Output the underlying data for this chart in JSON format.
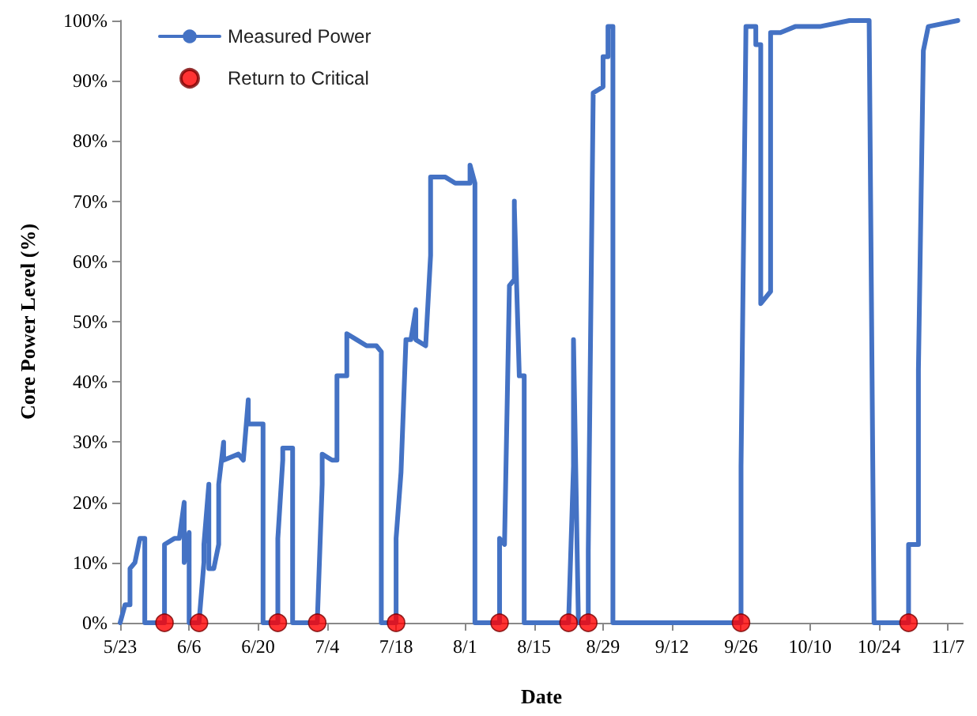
{
  "chart_data": {
    "type": "line",
    "xlabel": "Date",
    "ylabel": "Core Power Level (%)",
    "xlim": [
      "--05-23",
      "--11-10"
    ],
    "xticks": [
      {
        "value": "--05-23",
        "label": "5/23"
      },
      {
        "value": "--06-06",
        "label": "6/6"
      },
      {
        "value": "--06-20",
        "label": "6/20"
      },
      {
        "value": "--07-04",
        "label": "7/4"
      },
      {
        "value": "--07-18",
        "label": "7/18"
      },
      {
        "value": "--08-01",
        "label": "8/1"
      },
      {
        "value": "--08-15",
        "label": "8/15"
      },
      {
        "value": "--08-29",
        "label": "8/29"
      },
      {
        "value": "--09-12",
        "label": "9/12"
      },
      {
        "value": "--09-26",
        "label": "9/26"
      },
      {
        "value": "--10-10",
        "label": "10/10"
      },
      {
        "value": "--10-24",
        "label": "10/24"
      },
      {
        "value": "--11-07",
        "label": "11/7"
      }
    ],
    "ylim": [
      0,
      100
    ],
    "yticks": [
      {
        "value": 0,
        "label": "0%"
      },
      {
        "value": 10,
        "label": "10%"
      },
      {
        "value": 20,
        "label": "20%"
      },
      {
        "value": 30,
        "label": "30%"
      },
      {
        "value": 40,
        "label": "40%"
      },
      {
        "value": 50,
        "label": "50%"
      },
      {
        "value": 60,
        "label": "60%"
      },
      {
        "value": 70,
        "label": "70%"
      },
      {
        "value": 80,
        "label": "80%"
      },
      {
        "value": 90,
        "label": "90%"
      },
      {
        "value": 100,
        "label": "100%"
      }
    ],
    "grid": false,
    "legend": "top left",
    "series": [
      {
        "name": "Measured Power",
        "color": "#4472c4",
        "marker": "none",
        "x": [
          "--05-23",
          "--05-24",
          "--05-25",
          "--05-25",
          "--05-26",
          "--05-27",
          "--05-28",
          "--05-28",
          "--06-01",
          "--06-01",
          "--06-03",
          "--06-04",
          "--06-05",
          "--06-05",
          "--06-06",
          "--06-06",
          "--06-08",
          "--06-09",
          "--06-09",
          "--06-10",
          "--06-10",
          "--06-11",
          "--06-12",
          "--06-12",
          "--06-13",
          "--06-13",
          "--06-16",
          "--06-17",
          "--06-18",
          "--06-18",
          "--06-21",
          "--06-21",
          "--06-24",
          "--06-24",
          "--06-25",
          "--06-25",
          "--06-27",
          "--06-27",
          "--07-02",
          "--07-03",
          "--07-03",
          "--07-05",
          "--07-06",
          "--07-06",
          "--07-08",
          "--07-08",
          "--07-10",
          "--07-12",
          "--07-14",
          "--07-15",
          "--07-15",
          "--07-15",
          "--07-18",
          "--07-18",
          "--07-19",
          "--07-20",
          "--07-21",
          "--07-22",
          "--07-22",
          "--07-24",
          "--07-25",
          "--07-25",
          "--07-28",
          "--07-30",
          "--08-02",
          "--08-02",
          "--08-03",
          "--08-03",
          "--08-08",
          "--08-08",
          "--08-09",
          "--08-10",
          "--08-11",
          "--08-11",
          "--08-11",
          "--08-12",
          "--08-13",
          "--08-13",
          "--08-22",
          "--08-23",
          "--08-23",
          "--08-24",
          "--08-26",
          "--08-26",
          "--08-27",
          "--08-29",
          "--08-29",
          "--08-30",
          "--08-30",
          "--08-31",
          "--08-31",
          "--09-26",
          "--09-26",
          "--09-27",
          "--09-29",
          "--09-29",
          "--09-30",
          "--09-30",
          "--10-02",
          "--10-02",
          "--10-04",
          "--10-07",
          "--10-12",
          "--10-18",
          "--10-22",
          "--10-23",
          "--10-30",
          "--10-30",
          "--11-01",
          "--11-01",
          "--11-02",
          "--11-03",
          "--11-09"
        ],
        "values": [
          0,
          3,
          3,
          9,
          10,
          14,
          14,
          0,
          0,
          13,
          14,
          14,
          20,
          10,
          15,
          0,
          0,
          10,
          13,
          23,
          9,
          9,
          13,
          23,
          30,
          27,
          28,
          27,
          37,
          33,
          33,
          0,
          0,
          14,
          27,
          29,
          29,
          0,
          0,
          23,
          28,
          27,
          27,
          41,
          41,
          48,
          47,
          46,
          46,
          45,
          32,
          0,
          0,
          14,
          25,
          47,
          47,
          52,
          47,
          46,
          61,
          74,
          74,
          73,
          73,
          76,
          73,
          0,
          0,
          14,
          13,
          56,
          57,
          70,
          69,
          41,
          41,
          0,
          0,
          26,
          47,
          0,
          0,
          12,
          88,
          89,
          94,
          94,
          99,
          99,
          0,
          0,
          26,
          99,
          99,
          96,
          96,
          53,
          55,
          98,
          98,
          99,
          99,
          100,
          100,
          0,
          0,
          13,
          13,
          42,
          95,
          99,
          100
        ]
      },
      {
        "name": "Return to Critical",
        "type": "scatter",
        "color": "#ff0000",
        "marker": "circle",
        "x": [
          "--06-01",
          "--06-08",
          "--06-24",
          "--07-02",
          "--07-18",
          "--08-08",
          "--08-22",
          "--08-26",
          "--09-26",
          "--10-30"
        ],
        "values": [
          0,
          0,
          0,
          0,
          0,
          0,
          0,
          0,
          0,
          0
        ]
      }
    ]
  }
}
